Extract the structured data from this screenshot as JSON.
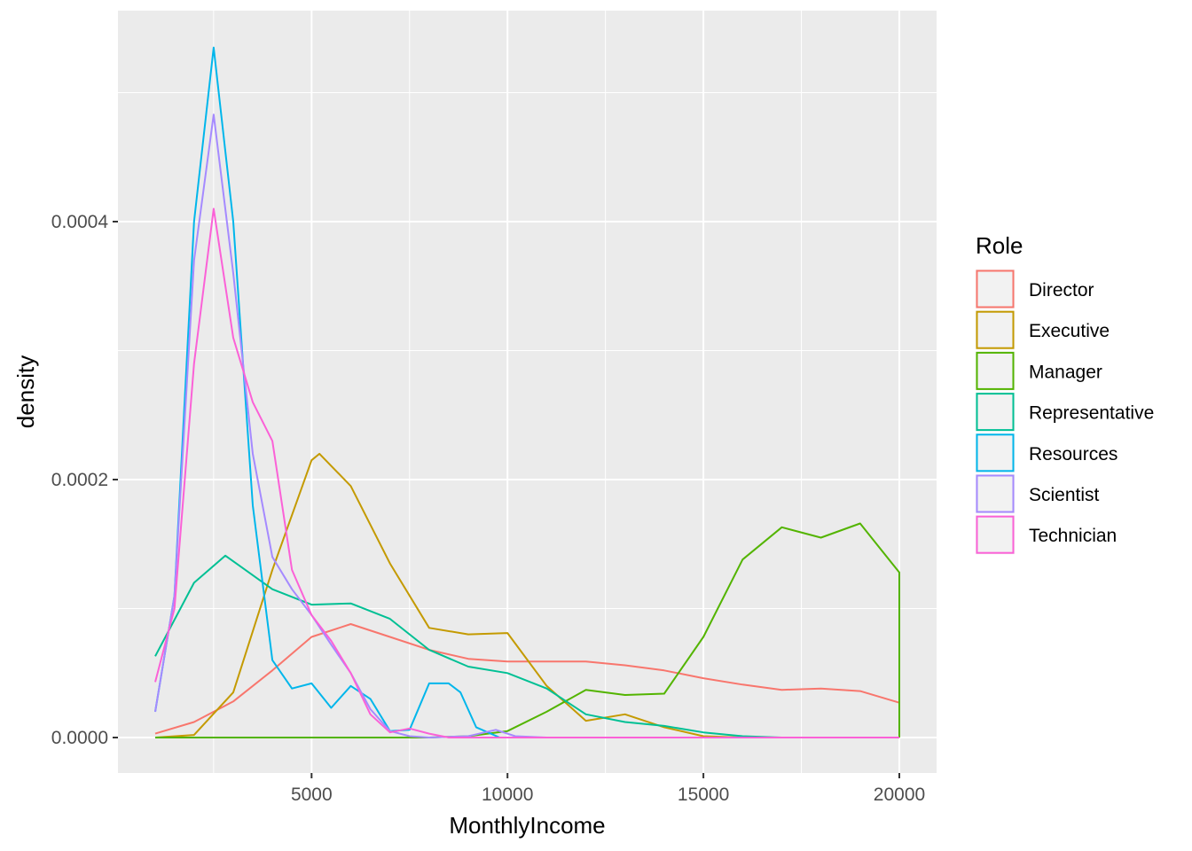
{
  "chart_data": {
    "type": "line",
    "xlabel": "MonthlyIncome",
    "ylabel": "density",
    "xlim": [
      1009,
      20000
    ],
    "ylim": [
      0,
      0.00054
    ],
    "x_ticks": [
      5000,
      10000,
      15000,
      20000
    ],
    "x_tick_labels": [
      "5000",
      "10000",
      "15000",
      "20000"
    ],
    "y_ticks": [
      0,
      0.0002,
      0.0004
    ],
    "y_tick_labels": [
      "0.0000",
      "0.0002",
      "0.0004"
    ],
    "grid": true,
    "legend": {
      "title": "Role",
      "position": "right"
    },
    "series": [
      {
        "name": "Director",
        "color": "#F8766D",
        "x": [
          1009,
          2000,
          3000,
          4000,
          5000,
          6000,
          7000,
          8000,
          9000,
          10000,
          11000,
          12000,
          13000,
          14000,
          15000,
          16000,
          17000,
          18000,
          19000,
          20000
        ],
        "y": [
          3e-06,
          1.2e-05,
          2.8e-05,
          5.2e-05,
          7.8e-05,
          8.8e-05,
          7.8e-05,
          6.8e-05,
          6.1e-05,
          5.9e-05,
          5.9e-05,
          5.9e-05,
          5.6e-05,
          5.2e-05,
          4.6e-05,
          4.1e-05,
          3.7e-05,
          3.8e-05,
          3.6e-05,
          2.7e-05
        ]
      },
      {
        "name": "Executive",
        "color": "#C49A00",
        "x": [
          1009,
          2000,
          3000,
          4000,
          5000,
          5200,
          6000,
          7000,
          8000,
          9000,
          10000,
          11000,
          12000,
          13000,
          14000,
          15000,
          16000,
          17000,
          18000,
          19000,
          20000
        ],
        "y": [
          0,
          2e-06,
          3.5e-05,
          0.00013,
          0.000215,
          0.00022,
          0.000195,
          0.000135,
          8.5e-05,
          8e-05,
          8.1e-05,
          4e-05,
          1.3e-05,
          1.8e-05,
          8e-06,
          1e-06,
          0,
          0,
          0,
          0,
          0
        ]
      },
      {
        "name": "Manager",
        "color": "#53B400",
        "x": [
          1009,
          2000,
          3000,
          4000,
          5000,
          6000,
          7000,
          8000,
          9000,
          10000,
          11000,
          12000,
          13000,
          14000,
          15000,
          16000,
          17000,
          18000,
          19000,
          20000,
          20000
        ],
        "y": [
          0,
          0,
          0,
          0,
          0,
          0,
          0,
          0,
          1e-06,
          5e-06,
          2e-05,
          3.7e-05,
          3.3e-05,
          3.4e-05,
          7.8e-05,
          0.000138,
          0.000163,
          0.000155,
          0.000166,
          0.000128,
          0
        ]
      },
      {
        "name": "Representative",
        "color": "#00C094",
        "x": [
          1009,
          2000,
          2800,
          4000,
          5000,
          6000,
          7000,
          8000,
          9000,
          10000,
          11000,
          12000,
          13000,
          14000,
          15000,
          16000,
          17000,
          18000,
          19000,
          20000
        ],
        "y": [
          6.3e-05,
          0.00012,
          0.000141,
          0.000115,
          0.000103,
          0.000104,
          9.2e-05,
          6.8e-05,
          5.5e-05,
          5e-05,
          3.8e-05,
          1.8e-05,
          1.2e-05,
          9e-06,
          4e-06,
          1e-06,
          0,
          0,
          0,
          0
        ]
      },
      {
        "name": "Resources",
        "color": "#00B6EB",
        "x": [
          1009,
          1500,
          2000,
          2500,
          3000,
          3500,
          4000,
          4500,
          5000,
          5500,
          6000,
          6500,
          7000,
          7500,
          8000,
          8500,
          8800,
          9200,
          9800,
          10500,
          20000
        ],
        "y": [
          2e-05,
          0.00011,
          0.0004,
          0.000535,
          0.0004,
          0.00018,
          6e-05,
          3.8e-05,
          4.2e-05,
          2.3e-05,
          4e-05,
          3e-05,
          5e-06,
          6e-06,
          4.2e-05,
          4.2e-05,
          3.5e-05,
          8e-06,
          0,
          0,
          0
        ]
      },
      {
        "name": "Scientist",
        "color": "#A58AFF",
        "x": [
          1009,
          1500,
          2000,
          2500,
          3000,
          3500,
          4000,
          4500,
          5000,
          5500,
          6000,
          6500,
          7000,
          7500,
          8000,
          9000,
          9700,
          10200,
          11000,
          20000
        ],
        "y": [
          2e-05,
          0.00011,
          0.00037,
          0.000483,
          0.00036,
          0.00022,
          0.00014,
          0.000115,
          9.5e-05,
          7.2e-05,
          5e-05,
          2.2e-05,
          5e-06,
          1e-06,
          0,
          1e-06,
          6e-06,
          1e-06,
          0,
          0
        ]
      },
      {
        "name": "Technician",
        "color": "#FB61D7",
        "x": [
          1009,
          1500,
          2000,
          2500,
          3000,
          3500,
          4000,
          4500,
          5000,
          5500,
          6000,
          6500,
          7000,
          7500,
          8000,
          8500,
          9000,
          20000
        ],
        "y": [
          4.3e-05,
          0.0001,
          0.00029,
          0.00041,
          0.00031,
          0.00026,
          0.00023,
          0.00013,
          9.5e-05,
          7.5e-05,
          5e-05,
          1.8e-05,
          4e-06,
          7e-06,
          3e-06,
          0,
          0,
          0
        ]
      }
    ]
  }
}
